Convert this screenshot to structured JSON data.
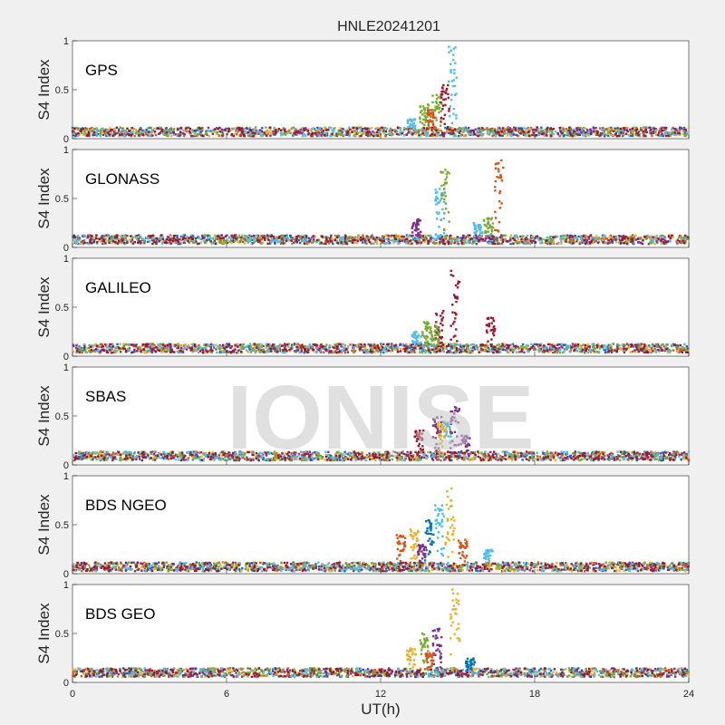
{
  "figure": {
    "title": "HNLE20241201",
    "watermark": "IONISE",
    "xlabel": "UT(h)"
  },
  "chart_data": [
    {
      "type": "scatter",
      "label": "GPS",
      "ylabel": "S4 Index",
      "xlim": [
        0,
        24
      ],
      "ylim": [
        0,
        1
      ],
      "xticks": [
        0,
        6,
        12,
        18,
        24
      ],
      "yticks": [
        0,
        0.5,
        1
      ],
      "baseline": 0.07,
      "spikes": [
        [
          13.7,
          0.35,
          "#77AC30"
        ],
        [
          14.2,
          0.45,
          "#77AC30"
        ],
        [
          14.5,
          0.55,
          "#A2142F"
        ],
        [
          14.8,
          0.95,
          "#4DBEEE"
        ],
        [
          13.2,
          0.2,
          "#4DBEEE"
        ],
        [
          14.0,
          0.3,
          "#D95319"
        ]
      ]
    },
    {
      "type": "scatter",
      "label": "GLONASS",
      "ylabel": "S4 Index",
      "xlim": [
        0,
        24
      ],
      "ylim": [
        0,
        1
      ],
      "xticks": [
        0,
        6,
        12,
        18,
        24
      ],
      "yticks": [
        0,
        0.5,
        1
      ],
      "baseline": 0.08,
      "spikes": [
        [
          13.4,
          0.3,
          "#7E2F8E"
        ],
        [
          14.3,
          0.6,
          "#4DBEEE"
        ],
        [
          14.5,
          0.8,
          "#77AC30"
        ],
        [
          15.8,
          0.25,
          "#4DBEEE"
        ],
        [
          16.6,
          0.9,
          "#D95319"
        ],
        [
          16.2,
          0.3,
          "#77AC30"
        ]
      ]
    },
    {
      "type": "scatter",
      "label": "GALILEO",
      "ylabel": "S4 Index",
      "xlim": [
        0,
        24
      ],
      "ylim": [
        0,
        1
      ],
      "xticks": [
        0,
        6,
        12,
        18,
        24
      ],
      "yticks": [
        0,
        0.5,
        1
      ],
      "baseline": 0.08,
      "spikes": [
        [
          13.4,
          0.25,
          "#4DBEEE"
        ],
        [
          13.8,
          0.35,
          "#77AC30"
        ],
        [
          14.3,
          0.5,
          "#A2142F"
        ],
        [
          14.9,
          0.88,
          "#A2142F"
        ],
        [
          16.3,
          0.4,
          "#A2142F"
        ],
        [
          14.1,
          0.3,
          "#77AC30"
        ]
      ]
    },
    {
      "type": "scatter",
      "label": "SBAS",
      "ylabel": "S4 Index",
      "xlim": [
        0,
        24
      ],
      "ylim": [
        0,
        1
      ],
      "xticks": [
        0,
        6,
        12,
        18,
        24
      ],
      "yticks": [
        0,
        0.5,
        1
      ],
      "baseline": 0.09,
      "spikes": [
        [
          13.5,
          0.35,
          "#A2142F"
        ],
        [
          14.2,
          0.5,
          "#7E2F8E"
        ],
        [
          14.6,
          0.45,
          "#4DBEEE"
        ],
        [
          14.9,
          0.6,
          "#7E2F8E"
        ],
        [
          15.3,
          0.3,
          "#7E2F8E"
        ],
        [
          14.4,
          0.45,
          "#EDB120"
        ]
      ]
    },
    {
      "type": "scatter",
      "label": "BDS NGEO",
      "ylabel": "S4 Index",
      "xlim": [
        0,
        24
      ],
      "ylim": [
        0,
        1
      ],
      "xticks": [
        0,
        6,
        12,
        18,
        24
      ],
      "yticks": [
        0,
        0.5,
        1
      ],
      "baseline": 0.07,
      "spikes": [
        [
          12.8,
          0.4,
          "#D95319"
        ],
        [
          13.3,
          0.45,
          "#EDB120"
        ],
        [
          13.9,
          0.55,
          "#0072BD"
        ],
        [
          14.3,
          0.7,
          "#4DBEEE"
        ],
        [
          14.7,
          0.88,
          "#EDB120"
        ],
        [
          15.2,
          0.35,
          "#D95319"
        ],
        [
          16.2,
          0.25,
          "#4DBEEE"
        ],
        [
          13.6,
          0.3,
          "#7E2F8E"
        ]
      ]
    },
    {
      "type": "scatter",
      "label": "BDS GEO",
      "ylabel": "S4 Index",
      "xlim": [
        0,
        24
      ],
      "ylim": [
        0,
        1
      ],
      "xticks": [
        0,
        6,
        12,
        18,
        24
      ],
      "yticks": [
        0,
        0.5,
        1
      ],
      "baseline": 0.1,
      "spikes": [
        [
          13.2,
          0.35,
          "#EDB120"
        ],
        [
          13.7,
          0.5,
          "#77AC30"
        ],
        [
          14.2,
          0.55,
          "#7E2F8E"
        ],
        [
          14.9,
          0.95,
          "#EDB120"
        ],
        [
          15.5,
          0.25,
          "#0072BD"
        ],
        [
          13.9,
          0.3,
          "#D95319"
        ]
      ]
    }
  ],
  "colors": [
    "#0072BD",
    "#D95319",
    "#EDB120",
    "#7E2F8E",
    "#77AC30",
    "#4DBEEE",
    "#A2142F"
  ]
}
